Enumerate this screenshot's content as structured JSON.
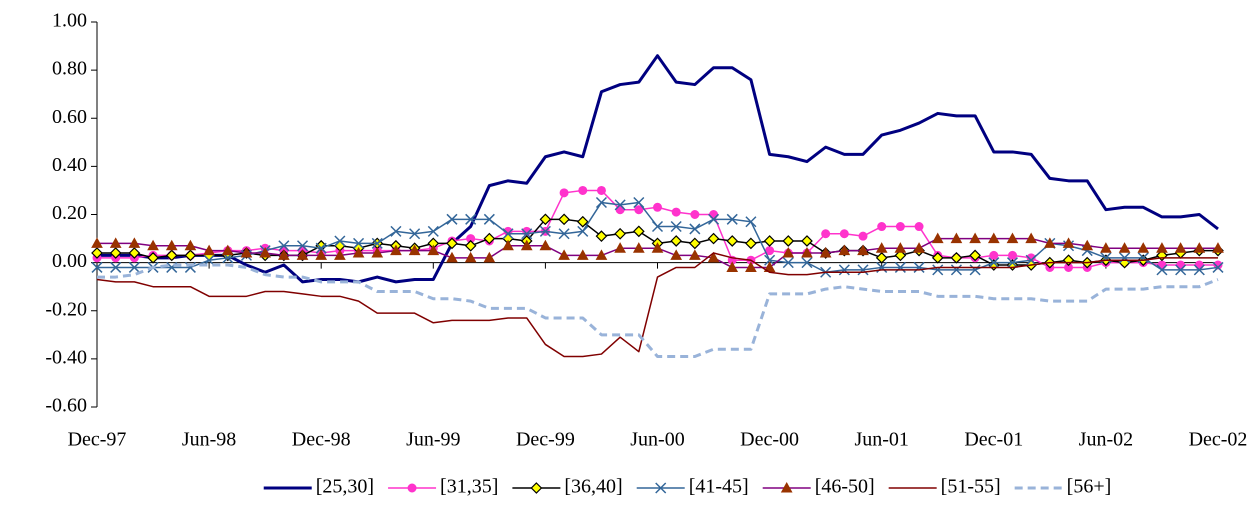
{
  "chart_data": {
    "type": "line",
    "categories": [
      "Dec-97",
      null,
      null,
      null,
      null,
      null,
      "Jun-98",
      null,
      null,
      null,
      null,
      null,
      "Dec-98",
      null,
      null,
      null,
      null,
      null,
      "Jun-99",
      null,
      null,
      null,
      null,
      null,
      "Dec-99",
      null,
      null,
      null,
      null,
      null,
      "Jun-00",
      null,
      null,
      null,
      null,
      null,
      "Dec-00",
      null,
      null,
      null,
      null,
      null,
      "Jun-01",
      null,
      null,
      null,
      null,
      null,
      "Dec-01",
      null,
      null,
      null,
      null,
      null,
      "Jun-02",
      null,
      null,
      null,
      null,
      null,
      "Dec-02"
    ],
    "ylim": [
      -0.6,
      1.0
    ],
    "yticks": [
      {
        "value": -0.6,
        "label": "-0.60"
      },
      {
        "value": -0.4,
        "label": "-0.40"
      },
      {
        "value": -0.2,
        "label": "-0.20"
      },
      {
        "value": 0,
        "label": "0.00"
      },
      {
        "value": 0.2,
        "label": "0.20"
      },
      {
        "value": 0.4,
        "label": "0.40"
      },
      {
        "value": 0.6,
        "label": "0.60"
      },
      {
        "value": 0.8,
        "label": "0.80"
      },
      {
        "value": 1.0,
        "label": "1.00"
      }
    ],
    "grid": false,
    "legend": "bottom",
    "series": [
      {
        "name": "[25,30]",
        "color": "#000080",
        "width": 3,
        "marker": "none",
        "dash": false,
        "values": [
          0.03,
          0.03,
          0.03,
          0.02,
          0.02,
          0.03,
          0.03,
          0.03,
          -0.01,
          -0.04,
          -0.01,
          -0.08,
          -0.07,
          -0.07,
          -0.08,
          -0.06,
          -0.08,
          -0.07,
          -0.07,
          0.08,
          0.15,
          0.32,
          0.34,
          0.33,
          0.44,
          0.46,
          0.44,
          0.71,
          0.74,
          0.75,
          0.86,
          0.75,
          0.74,
          0.81,
          0.81,
          0.76,
          0.45,
          0.44,
          0.42,
          0.48,
          0.45,
          0.45,
          0.53,
          0.55,
          0.58,
          0.62,
          0.61,
          0.61,
          0.46,
          0.46,
          0.45,
          0.35,
          0.34,
          0.34,
          0.22,
          0.23,
          0.23,
          0.19,
          0.19,
          0.2,
          0.14
        ]
      },
      {
        "name": "[31,35]",
        "color": "#ff33cc",
        "width": 1.5,
        "marker": "circle",
        "marker_color": "#ff33cc",
        "dash": false,
        "values": [
          0.02,
          0.02,
          0.02,
          0.03,
          0.03,
          0.03,
          0.04,
          0.05,
          0.05,
          0.06,
          0.05,
          0.05,
          0.04,
          0.05,
          0.05,
          0.05,
          0.05,
          0.05,
          0.06,
          0.09,
          0.1,
          0.09,
          0.13,
          0.13,
          0.13,
          0.29,
          0.3,
          0.3,
          0.22,
          0.22,
          0.23,
          0.21,
          0.2,
          0.2,
          0.01,
          0.01,
          0.05,
          0.04,
          0.04,
          0.12,
          0.12,
          0.11,
          0.15,
          0.15,
          0.15,
          0.03,
          0.02,
          0.02,
          0.03,
          0.03,
          0.02,
          -0.02,
          -0.02,
          -0.02,
          0.0,
          0.0,
          0.0,
          -0.01,
          -0.01,
          -0.01,
          -0.01
        ]
      },
      {
        "name": "[36,40]",
        "color": "#000000",
        "width": 1.5,
        "marker": "diamond",
        "marker_color": "#ffff00",
        "dash": false,
        "values": [
          0.04,
          0.04,
          0.04,
          0.02,
          0.03,
          0.03,
          0.03,
          0.03,
          0.04,
          0.03,
          0.03,
          0.03,
          0.07,
          0.07,
          0.06,
          0.08,
          0.07,
          0.06,
          0.08,
          0.08,
          0.07,
          0.1,
          0.1,
          0.09,
          0.18,
          0.18,
          0.17,
          0.11,
          0.12,
          0.13,
          0.08,
          0.09,
          0.08,
          0.1,
          0.09,
          0.08,
          0.09,
          0.09,
          0.09,
          0.04,
          0.05,
          0.05,
          0.02,
          0.03,
          0.05,
          0.02,
          0.02,
          0.03,
          -0.01,
          -0.01,
          -0.01,
          0.0,
          0.01,
          0.0,
          0.01,
          0.0,
          0.01,
          0.03,
          0.04,
          0.05,
          0.05
        ]
      },
      {
        "name": "[41-45]",
        "color": "#336699",
        "width": 1.5,
        "marker": "cross",
        "marker_color": "#336699",
        "dash": false,
        "values": [
          -0.02,
          -0.02,
          -0.02,
          -0.02,
          -0.02,
          -0.02,
          0.01,
          0.02,
          0.03,
          0.05,
          0.07,
          0.07,
          0.06,
          0.09,
          0.08,
          0.08,
          0.13,
          0.12,
          0.13,
          0.18,
          0.18,
          0.18,
          0.12,
          0.12,
          0.13,
          0.12,
          0.13,
          0.25,
          0.24,
          0.25,
          0.15,
          0.15,
          0.14,
          0.18,
          0.18,
          0.17,
          0.01,
          0.0,
          0.0,
          -0.04,
          -0.03,
          -0.03,
          -0.02,
          -0.02,
          -0.02,
          -0.03,
          -0.03,
          -0.03,
          0.0,
          0.0,
          0.01,
          0.08,
          0.07,
          0.05,
          0.02,
          0.02,
          0.02,
          -0.03,
          -0.03,
          -0.03,
          -0.02
        ]
      },
      {
        "name": "[46-50]",
        "color": "#800080",
        "width": 1.5,
        "marker": "triangle",
        "marker_color": "#993300",
        "dash": false,
        "values": [
          0.08,
          0.08,
          0.08,
          0.07,
          0.07,
          0.07,
          0.05,
          0.05,
          0.04,
          0.04,
          0.03,
          0.03,
          0.03,
          0.03,
          0.04,
          0.04,
          0.05,
          0.05,
          0.05,
          0.02,
          0.02,
          0.02,
          0.07,
          0.07,
          0.07,
          0.03,
          0.03,
          0.03,
          0.06,
          0.06,
          0.06,
          0.03,
          0.03,
          0.02,
          -0.02,
          -0.02,
          -0.02,
          0.04,
          0.04,
          0.04,
          0.05,
          0.05,
          0.06,
          0.06,
          0.06,
          0.1,
          0.1,
          0.1,
          0.1,
          0.1,
          0.1,
          0.08,
          0.08,
          0.07,
          0.06,
          0.06,
          0.06,
          0.06,
          0.06,
          0.06,
          0.06
        ]
      },
      {
        "name": "[51-55]",
        "color": "#800000",
        "width": 1.5,
        "marker": "none",
        "dash": false,
        "values": [
          -0.07,
          -0.08,
          -0.08,
          -0.1,
          -0.1,
          -0.1,
          -0.14,
          -0.14,
          -0.14,
          -0.12,
          -0.12,
          -0.13,
          -0.14,
          -0.14,
          -0.16,
          -0.21,
          -0.21,
          -0.21,
          -0.25,
          -0.24,
          -0.24,
          -0.24,
          -0.23,
          -0.23,
          -0.34,
          -0.39,
          -0.39,
          -0.38,
          -0.31,
          -0.37,
          -0.06,
          -0.02,
          -0.02,
          0.04,
          0.02,
          0.01,
          -0.04,
          -0.05,
          -0.05,
          -0.04,
          -0.04,
          -0.04,
          -0.03,
          -0.03,
          -0.03,
          -0.02,
          -0.02,
          -0.02,
          -0.02,
          -0.02,
          -0.01,
          0.0,
          0.0,
          0.0,
          0.01,
          0.01,
          0.01,
          0.02,
          0.02,
          0.02,
          0.02
        ]
      },
      {
        "name": "[56+]",
        "color": "#99b3d9",
        "width": 3,
        "marker": "none",
        "dash": true,
        "values": [
          -0.06,
          -0.06,
          -0.05,
          -0.02,
          -0.01,
          -0.01,
          -0.01,
          -0.01,
          -0.02,
          -0.05,
          -0.06,
          -0.06,
          -0.08,
          -0.08,
          -0.08,
          -0.12,
          -0.12,
          -0.12,
          -0.15,
          -0.15,
          -0.16,
          -0.19,
          -0.19,
          -0.19,
          -0.23,
          -0.23,
          -0.23,
          -0.3,
          -0.3,
          -0.3,
          -0.39,
          -0.39,
          -0.39,
          -0.36,
          -0.36,
          -0.36,
          -0.13,
          -0.13,
          -0.13,
          -0.11,
          -0.1,
          -0.11,
          -0.12,
          -0.12,
          -0.12,
          -0.14,
          -0.14,
          -0.14,
          -0.15,
          -0.15,
          -0.15,
          -0.16,
          -0.16,
          -0.16,
          -0.11,
          -0.11,
          -0.11,
          -0.1,
          -0.1,
          -0.1,
          -0.07
        ]
      }
    ]
  }
}
